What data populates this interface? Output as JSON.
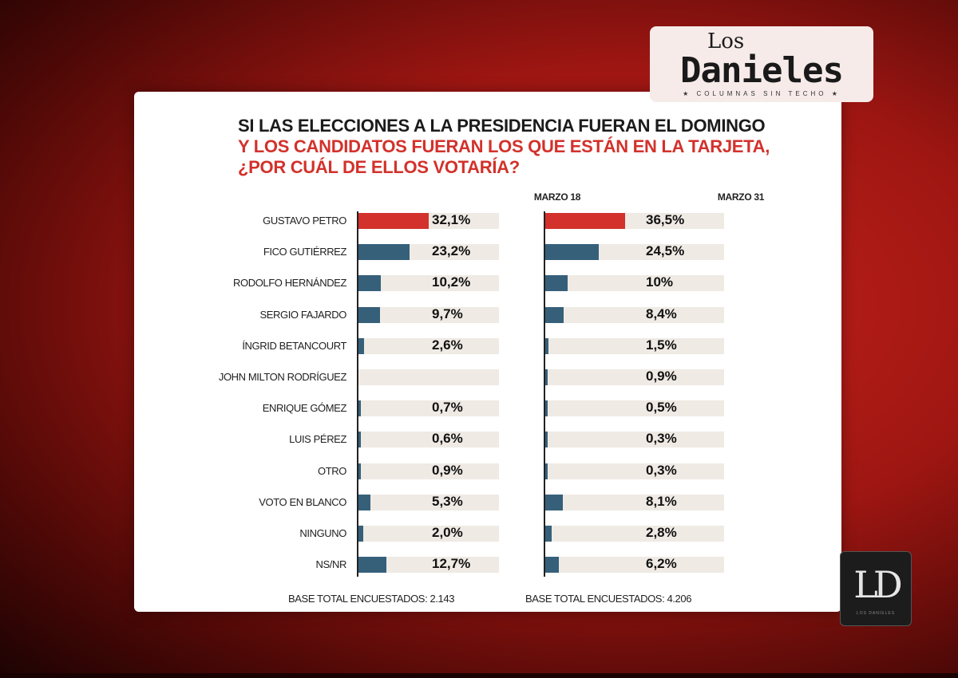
{
  "chart_data": {
    "type": "bar",
    "title": "SI LAS ELECCIONES A LA PRESIDENCIA FUERAN EL DOMINGO",
    "subtitle_line1": "Y LOS CANDIDATOS FUERAN LOS QUE ESTÁN EN LA TARJETA,",
    "subtitle_line2": "¿POR CUÁL DE ELLOS VOTARÍA?",
    "categories": [
      "GUSTAVO PETRO",
      "FICO GUTIÉRREZ",
      "RODOLFO HERNÁNDEZ",
      "SERGIO FAJARDO",
      "ÍNGRID BETANCOURT",
      "JOHN MILTON RODRÍGUEZ",
      "ENRIQUE GÓMEZ",
      "LUIS PÉREZ",
      "OTRO",
      "VOTO EN BLANCO",
      "NINGUNO",
      "NS/NR"
    ],
    "series": [
      {
        "name": "MARZO 18",
        "values": [
          32.1,
          23.2,
          10.2,
          9.7,
          2.6,
          null,
          0.7,
          0.6,
          0.9,
          5.3,
          2.0,
          12.7
        ],
        "labels": [
          "32,1%",
          "23,2%",
          "10,2%",
          "9,7%",
          "2,6%",
          "",
          "0,7%",
          "0,6%",
          "0,9%",
          "5,3%",
          "2,0%",
          "12,7%"
        ],
        "base": "BASE TOTAL ENCUESTADOS: 2.143"
      },
      {
        "name": "MARZO 31",
        "values": [
          36.5,
          24.5,
          10,
          8.4,
          1.5,
          0.9,
          0.5,
          0.3,
          0.3,
          8.1,
          2.8,
          6.2
        ],
        "labels": [
          "36,5%",
          "24,5%",
          "10%",
          "8,4%",
          "1,5%",
          "0,9%",
          "0,5%",
          "0,3%",
          "0,3%",
          "8,1%",
          "2,8%",
          "6,2%"
        ],
        "base": "BASE TOTAL ENCUESTADOS: 4.206"
      }
    ],
    "highlight_color": "#d3312b",
    "bar_color": "#36607a",
    "track_color": "#efeae4"
  },
  "branding": {
    "logo_top": "Los",
    "logo_main": "Danieles",
    "logo_tagline": "★ COLUMNAS SIN TECHO ★",
    "corner_logo": "LD",
    "corner_logo_tagline": "LOS DANIELES"
  }
}
